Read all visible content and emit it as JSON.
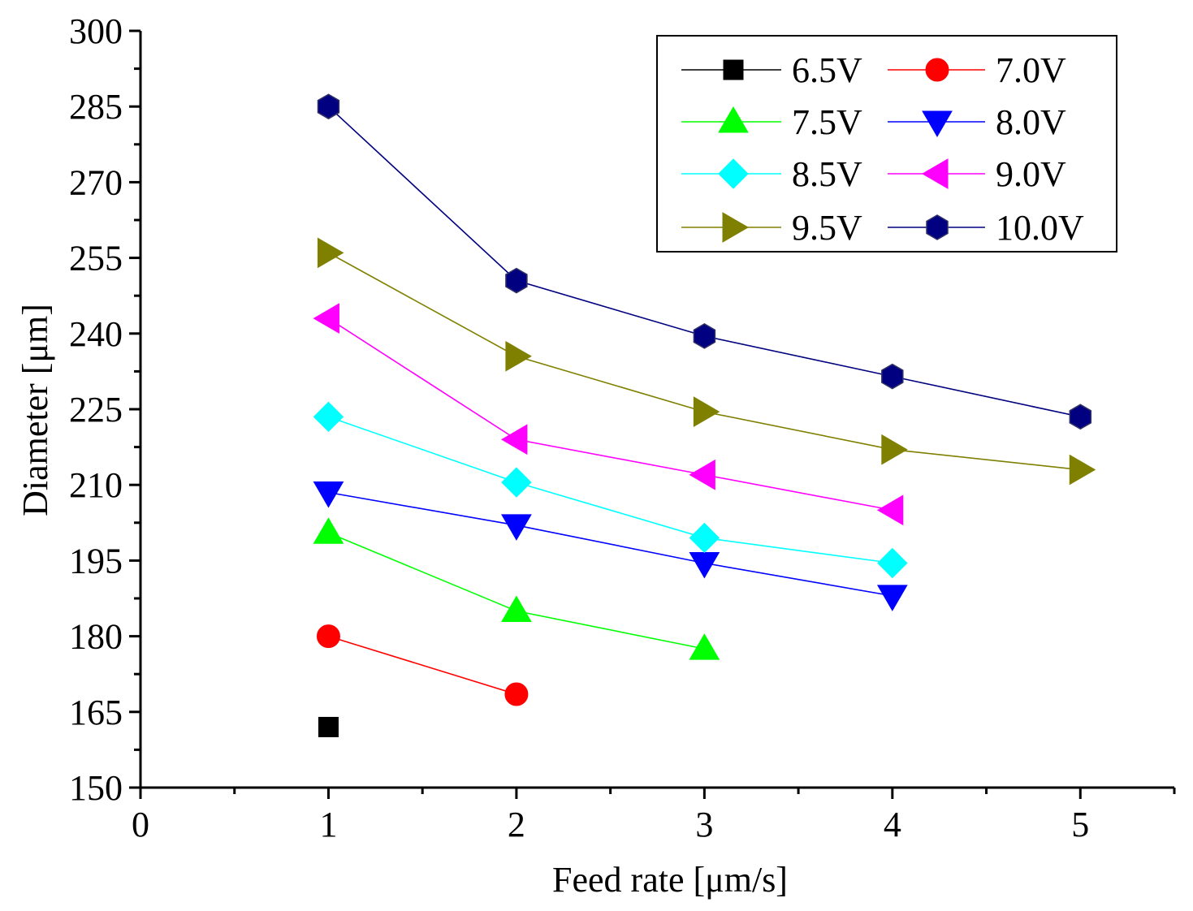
{
  "chart_data": {
    "type": "line",
    "title": "",
    "xlabel": "Feed rate [μm/s]",
    "ylabel": "Diameter [μm]",
    "xlim": [
      0,
      5.5
    ],
    "ylim": [
      150,
      300
    ],
    "xticks": [
      0,
      1,
      2,
      3,
      4,
      5
    ],
    "yticks": [
      150,
      165,
      180,
      195,
      210,
      225,
      240,
      255,
      270,
      285,
      300
    ],
    "grid": false,
    "legend_position": "top-right",
    "series": [
      {
        "name": "6.5V",
        "color": "#000000",
        "marker": "square",
        "x": [
          1
        ],
        "y": [
          162
        ]
      },
      {
        "name": "7.0V",
        "color": "#ff0000",
        "marker": "circle",
        "x": [
          1,
          2
        ],
        "y": [
          180,
          168.5
        ]
      },
      {
        "name": "7.5V",
        "color": "#00ff00",
        "marker": "triangle-up",
        "x": [
          1,
          2,
          3
        ],
        "y": [
          200.5,
          185,
          177.5
        ]
      },
      {
        "name": "8.0V",
        "color": "#0000ff",
        "marker": "triangle-down",
        "x": [
          1,
          2,
          3,
          4
        ],
        "y": [
          208.5,
          202,
          194.5,
          188
        ]
      },
      {
        "name": "8.5V",
        "color": "#00ffff",
        "marker": "diamond",
        "x": [
          1,
          2,
          3,
          4
        ],
        "y": [
          223.5,
          210.5,
          199.5,
          194.5
        ]
      },
      {
        "name": "9.0V",
        "color": "#ff00ff",
        "marker": "triangle-left",
        "x": [
          1,
          2,
          3,
          4
        ],
        "y": [
          243,
          219,
          212,
          205
        ]
      },
      {
        "name": "9.5V",
        "color": "#808000",
        "marker": "triangle-right",
        "x": [
          1,
          2,
          3,
          4,
          5
        ],
        "y": [
          256,
          235.5,
          224.5,
          217,
          213
        ]
      },
      {
        "name": "10.0V",
        "color": "#000080",
        "marker": "hexagon",
        "x": [
          1,
          2,
          3,
          4,
          5
        ],
        "y": [
          285,
          250.5,
          239.5,
          231.5,
          223.5
        ]
      }
    ]
  }
}
